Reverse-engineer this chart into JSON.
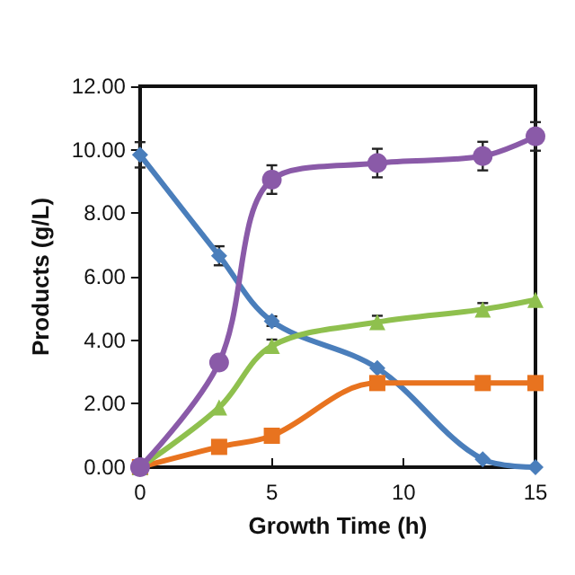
{
  "chart_data": {
    "type": "line",
    "xlabel": "Growth Time (h)",
    "ylabel": "Products (g/L)",
    "xlim": [
      0,
      15
    ],
    "xticks": [
      0,
      5,
      10,
      15
    ],
    "ylim": [
      0,
      12
    ],
    "yticks": [
      {
        "value": 0,
        "label": "0.00"
      },
      {
        "value": 2,
        "label": "2.00"
      },
      {
        "value": 4,
        "label": "4.00"
      },
      {
        "value": 6,
        "label": "6.00"
      },
      {
        "value": 8,
        "label": "8.00"
      },
      {
        "value": 10,
        "label": "10.00"
      },
      {
        "value": 12,
        "label": "12.00"
      }
    ],
    "x": [
      0,
      3,
      5,
      9,
      13,
      15
    ],
    "grid": false,
    "series": [
      {
        "color": "#4a7ebb",
        "marker": "diamond",
        "values": [
          9.84,
          6.66,
          4.6,
          3.12,
          0.25,
          0
        ],
        "errors": [
          0.4,
          0.3,
          0.15,
          null,
          null,
          null
        ]
      },
      {
        "color": "#e8731f",
        "marker": "square",
        "values": [
          0,
          0.64,
          0.99,
          2.65,
          2.65,
          2.65
        ]
      },
      {
        "color": "#8fc04e",
        "marker": "triangle",
        "values": [
          0,
          1.88,
          3.82,
          4.57,
          4.97,
          5.27
        ],
        "errors": [
          null,
          null,
          0.2,
          0.2,
          0.2,
          null
        ]
      },
      {
        "color": "#8a5aa8",
        "marker": "circle",
        "values": [
          0,
          3.3,
          9.06,
          9.58,
          9.8,
          10.42
        ],
        "errors": [
          null,
          null,
          0.45,
          0.45,
          0.45,
          0.45
        ]
      }
    ]
  }
}
